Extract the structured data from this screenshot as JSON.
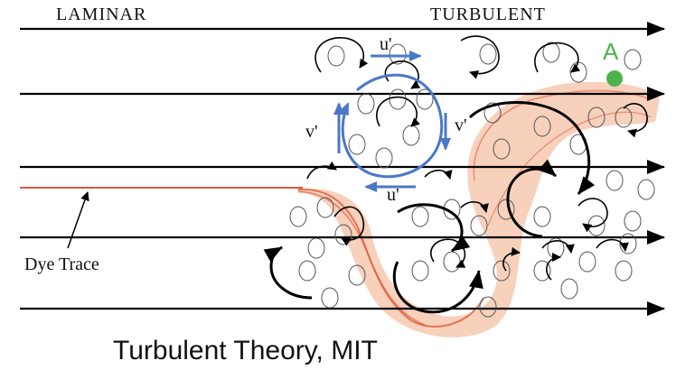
{
  "labels": {
    "laminar": "LAMINAR",
    "turbulent": "TURBULENT",
    "u_prime_top": "u'",
    "u_prime_bottom": "u'",
    "v_prime_left": "v'",
    "v_prime_right": "v'",
    "point_a": "A",
    "dye_trace": "Dye Trace",
    "caption": "Turbulent Theory, MIT"
  },
  "colors": {
    "streamline": "#000000",
    "velocity_arrow": "#4a78c8",
    "dye": "#e05a3a",
    "dye_fill": "#f2b79a",
    "point": "#4db34d",
    "text": "#111111"
  }
}
